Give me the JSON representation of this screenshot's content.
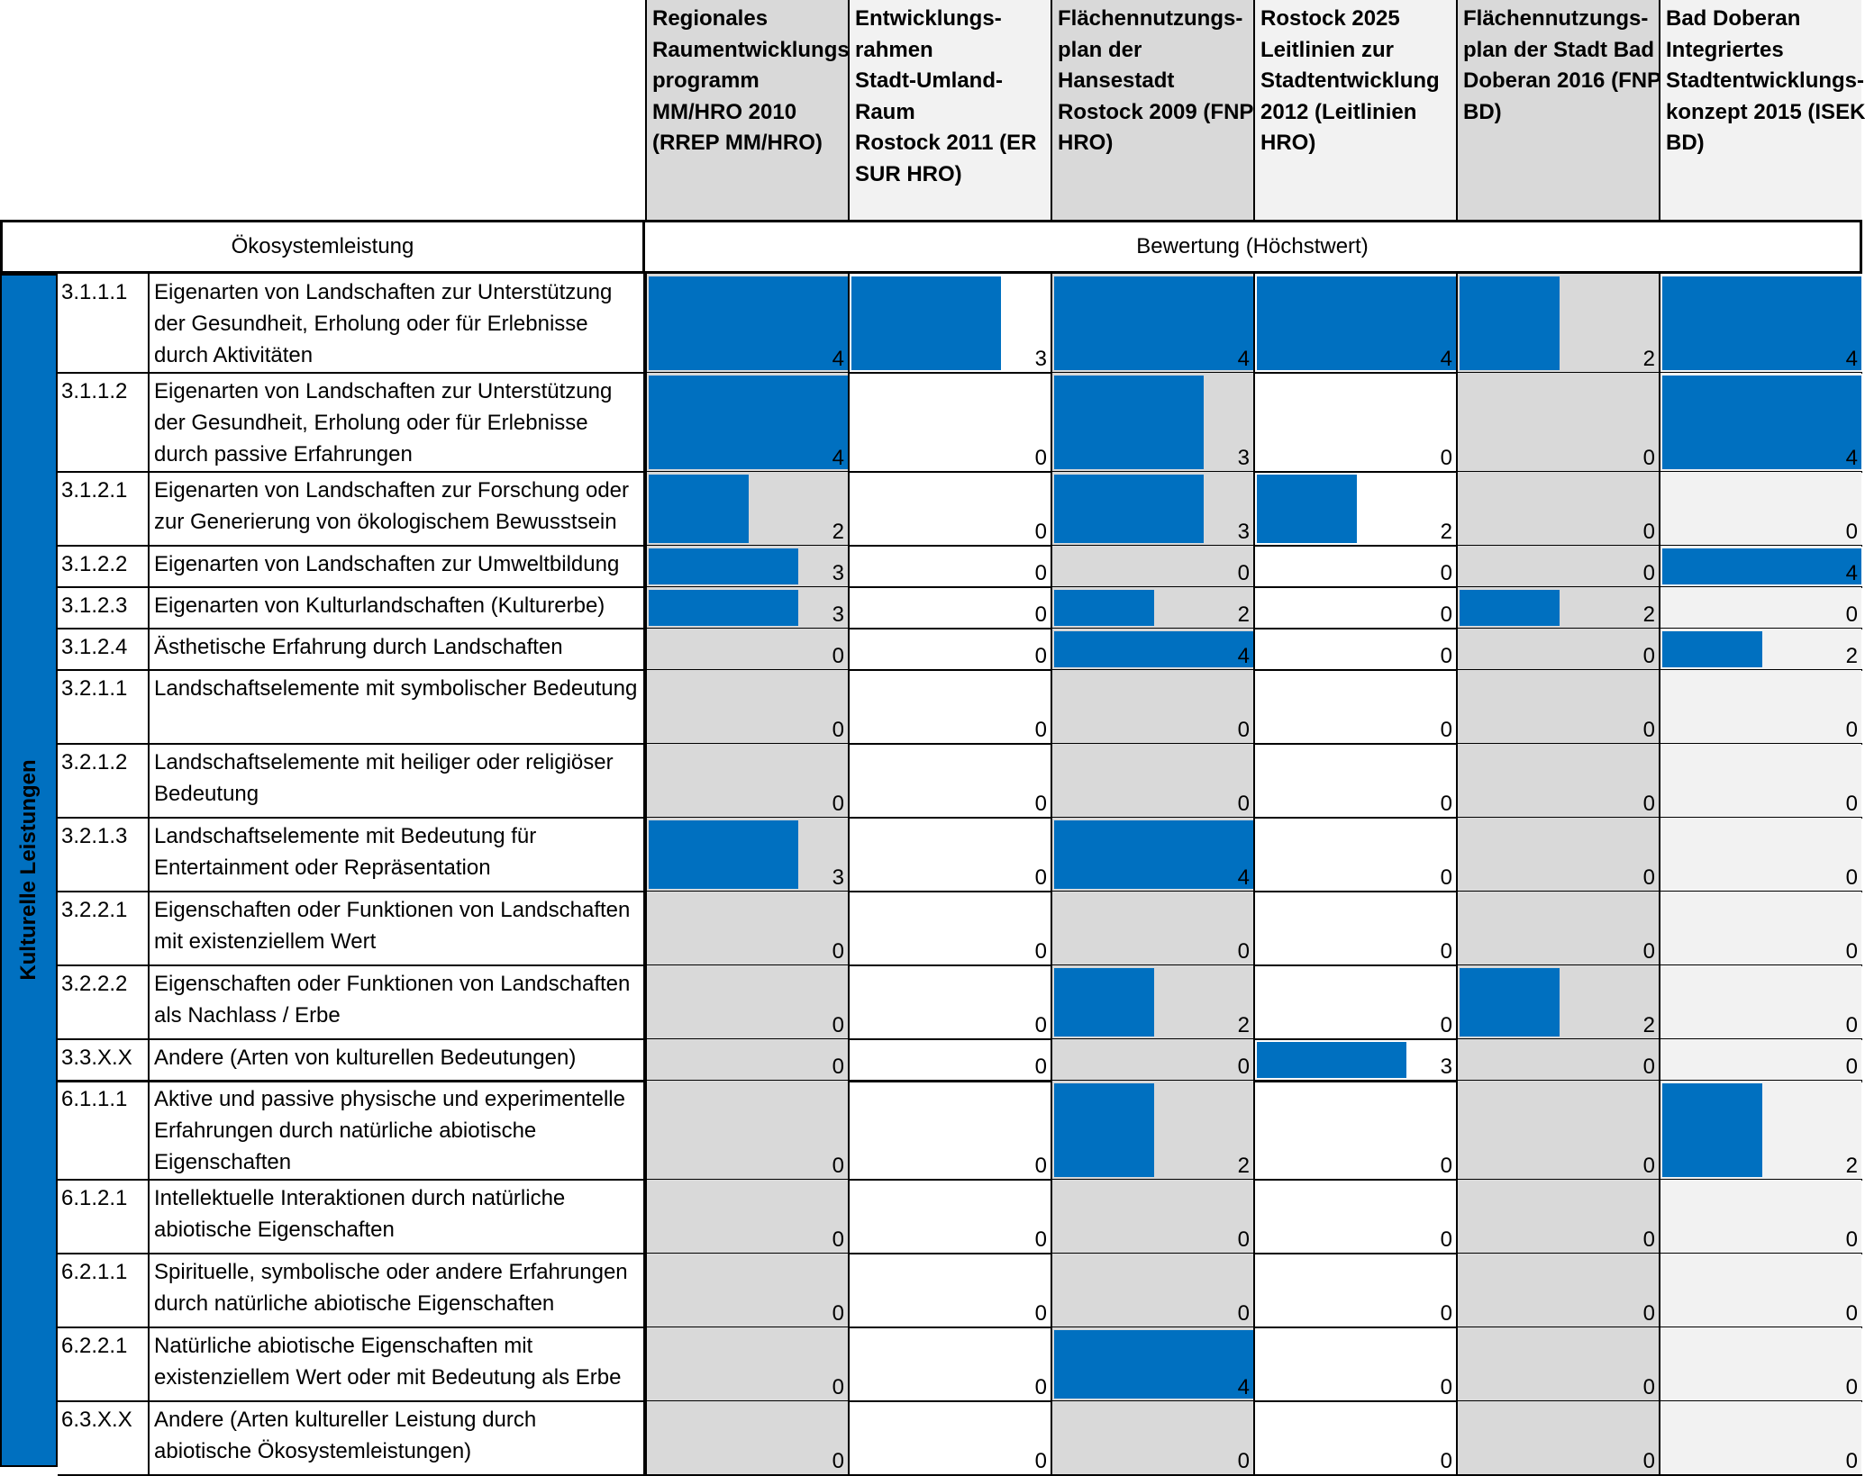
{
  "chart_data": {
    "type": "table",
    "columns": [
      "Regionales Raumentwicklungs-programm MM/HRO 2010 (RREP MM/HRO)",
      "Entwicklungs-rahmen Stadt-Umland-Raum Rostock 2011 (ER SUR HRO)",
      "Flächennutzungs-plan der Hansestadt Rostock 2009 (FNP HRO)",
      "Rostock 2025 Leitlinien zur Stadtentwicklung 2012 (Leitlinien HRO)",
      "Flächennutzungs-plan der Stadt Bad Doberan 2016 (FNP BD)",
      "Bad Doberan Integriertes Stadtentwicklungs-konzept 2015 (ISEK BD)"
    ],
    "column_header_lines": [
      [
        "Regionales",
        "Raumentwicklungs-",
        "programm",
        "MM/HRO 2010",
        "(RREP MM/HRO)"
      ],
      [
        "Entwicklungs-",
        "rahmen",
        "Stadt-Umland-",
        "Raum",
        "Rostock 2011 (ER",
        "SUR HRO)"
      ],
      [
        "Flächennutzungs-",
        "plan der",
        "Hansestadt",
        "Rostock 2009 (FNP",
        "HRO)"
      ],
      [
        "Rostock 2025",
        "Leitlinien zur",
        "Stadtentwicklung",
        "2012 (Leitlinien",
        "HRO)"
      ],
      [
        "Flächennutzungs-",
        "plan der Stadt Bad",
        "Doberan 2016 (FNP",
        "BD)"
      ],
      [
        "Bad Doberan",
        "Integriertes",
        "Stadtentwicklungs-",
        "konzept 2015 (ISEK",
        "BD)"
      ]
    ],
    "row_header_label": "Ökosystemleistung",
    "value_header_label": "Bewertung (Höchstwert)",
    "category_label": "Kulturelle Leistungen",
    "value_range": [
      0,
      4
    ],
    "bar_color": "#0070c0",
    "rows": [
      {
        "code": "3.1.1.1",
        "label": "Eigenarten von Landschaften zur Unterstützung der Gesundheit, Erholung oder für Erlebnisse durch Aktivitäten",
        "values": [
          4,
          3,
          4,
          4,
          2,
          4
        ]
      },
      {
        "code": "3.1.1.2",
        "label": "Eigenarten von Landschaften zur Unterstützung der Gesundheit, Erholung oder für Erlebnisse durch passive Erfahrungen",
        "values": [
          4,
          0,
          3,
          0,
          0,
          4
        ]
      },
      {
        "code": "3.1.2.1",
        "label": "Eigenarten von Landschaften zur Forschung oder zur Generierung von ökologischem Bewusstsein",
        "values": [
          2,
          0,
          3,
          2,
          0,
          0
        ]
      },
      {
        "code": "3.1.2.2",
        "label": "Eigenarten von Landschaften zur Umweltbildung",
        "values": [
          3,
          0,
          0,
          0,
          0,
          4
        ]
      },
      {
        "code": "3.1.2.3",
        "label": "Eigenarten von Kulturlandschaften (Kulturerbe)",
        "values": [
          3,
          0,
          2,
          0,
          2,
          0
        ]
      },
      {
        "code": "3.1.2.4",
        "label": "Ästhetische Erfahrung durch Landschaften",
        "values": [
          0,
          0,
          4,
          0,
          0,
          2
        ]
      },
      {
        "code": "3.2.1.1",
        "label": "Landschaftselemente mit symbolischer Bedeutung",
        "values": [
          0,
          0,
          0,
          0,
          0,
          0
        ]
      },
      {
        "code": "3.2.1.2",
        "label": "Landschaftselemente mit heiliger oder religiöser Bedeutung",
        "values": [
          0,
          0,
          0,
          0,
          0,
          0
        ]
      },
      {
        "code": "3.2.1.3",
        "label": "Landschaftselemente mit Bedeutung für Entertainment oder Repräsentation",
        "values": [
          3,
          0,
          4,
          0,
          0,
          0
        ]
      },
      {
        "code": "3.2.2.1",
        "label": "Eigenschaften oder Funktionen von Landschaften mit existenziellem Wert",
        "values": [
          0,
          0,
          0,
          0,
          0,
          0
        ]
      },
      {
        "code": "3.2.2.2",
        "label": "Eigenschaften oder Funktionen von Landschaften als Nachlass / Erbe",
        "values": [
          0,
          0,
          2,
          0,
          2,
          0
        ]
      },
      {
        "code": "3.3.X.X",
        "label": "Andere (Arten von kulturellen Bedeutungen)",
        "values": [
          0,
          0,
          0,
          3,
          0,
          0
        ]
      },
      {
        "code": "6.1.1.1",
        "label": "Aktive und passive physische und experimentelle Erfahrungen durch natürliche abiotische Eigenschaften",
        "values": [
          0,
          0,
          2,
          0,
          0,
          2
        ]
      },
      {
        "code": "6.1.2.1",
        "label": "Intellektuelle Interaktionen durch natürliche abiotische Eigenschaften",
        "values": [
          0,
          0,
          0,
          0,
          0,
          0
        ]
      },
      {
        "code": "6.2.1.1",
        "label": "Spirituelle, symbolische oder andere Erfahrungen durch natürliche abiotische Eigenschaften",
        "values": [
          0,
          0,
          0,
          0,
          0,
          0
        ]
      },
      {
        "code": "6.2.2.1",
        "label": "Natürliche abiotische Eigenschaften mit existenziellem Wert oder mit Bedeutung als Erbe",
        "values": [
          0,
          0,
          4,
          0,
          0,
          0
        ]
      },
      {
        "code": "6.3.X.X",
        "label": "Andere (Arten kultureller Leistung durch abiotische Ökosystemleistungen)",
        "values": [
          0,
          0,
          0,
          0,
          0,
          0
        ]
      }
    ]
  }
}
